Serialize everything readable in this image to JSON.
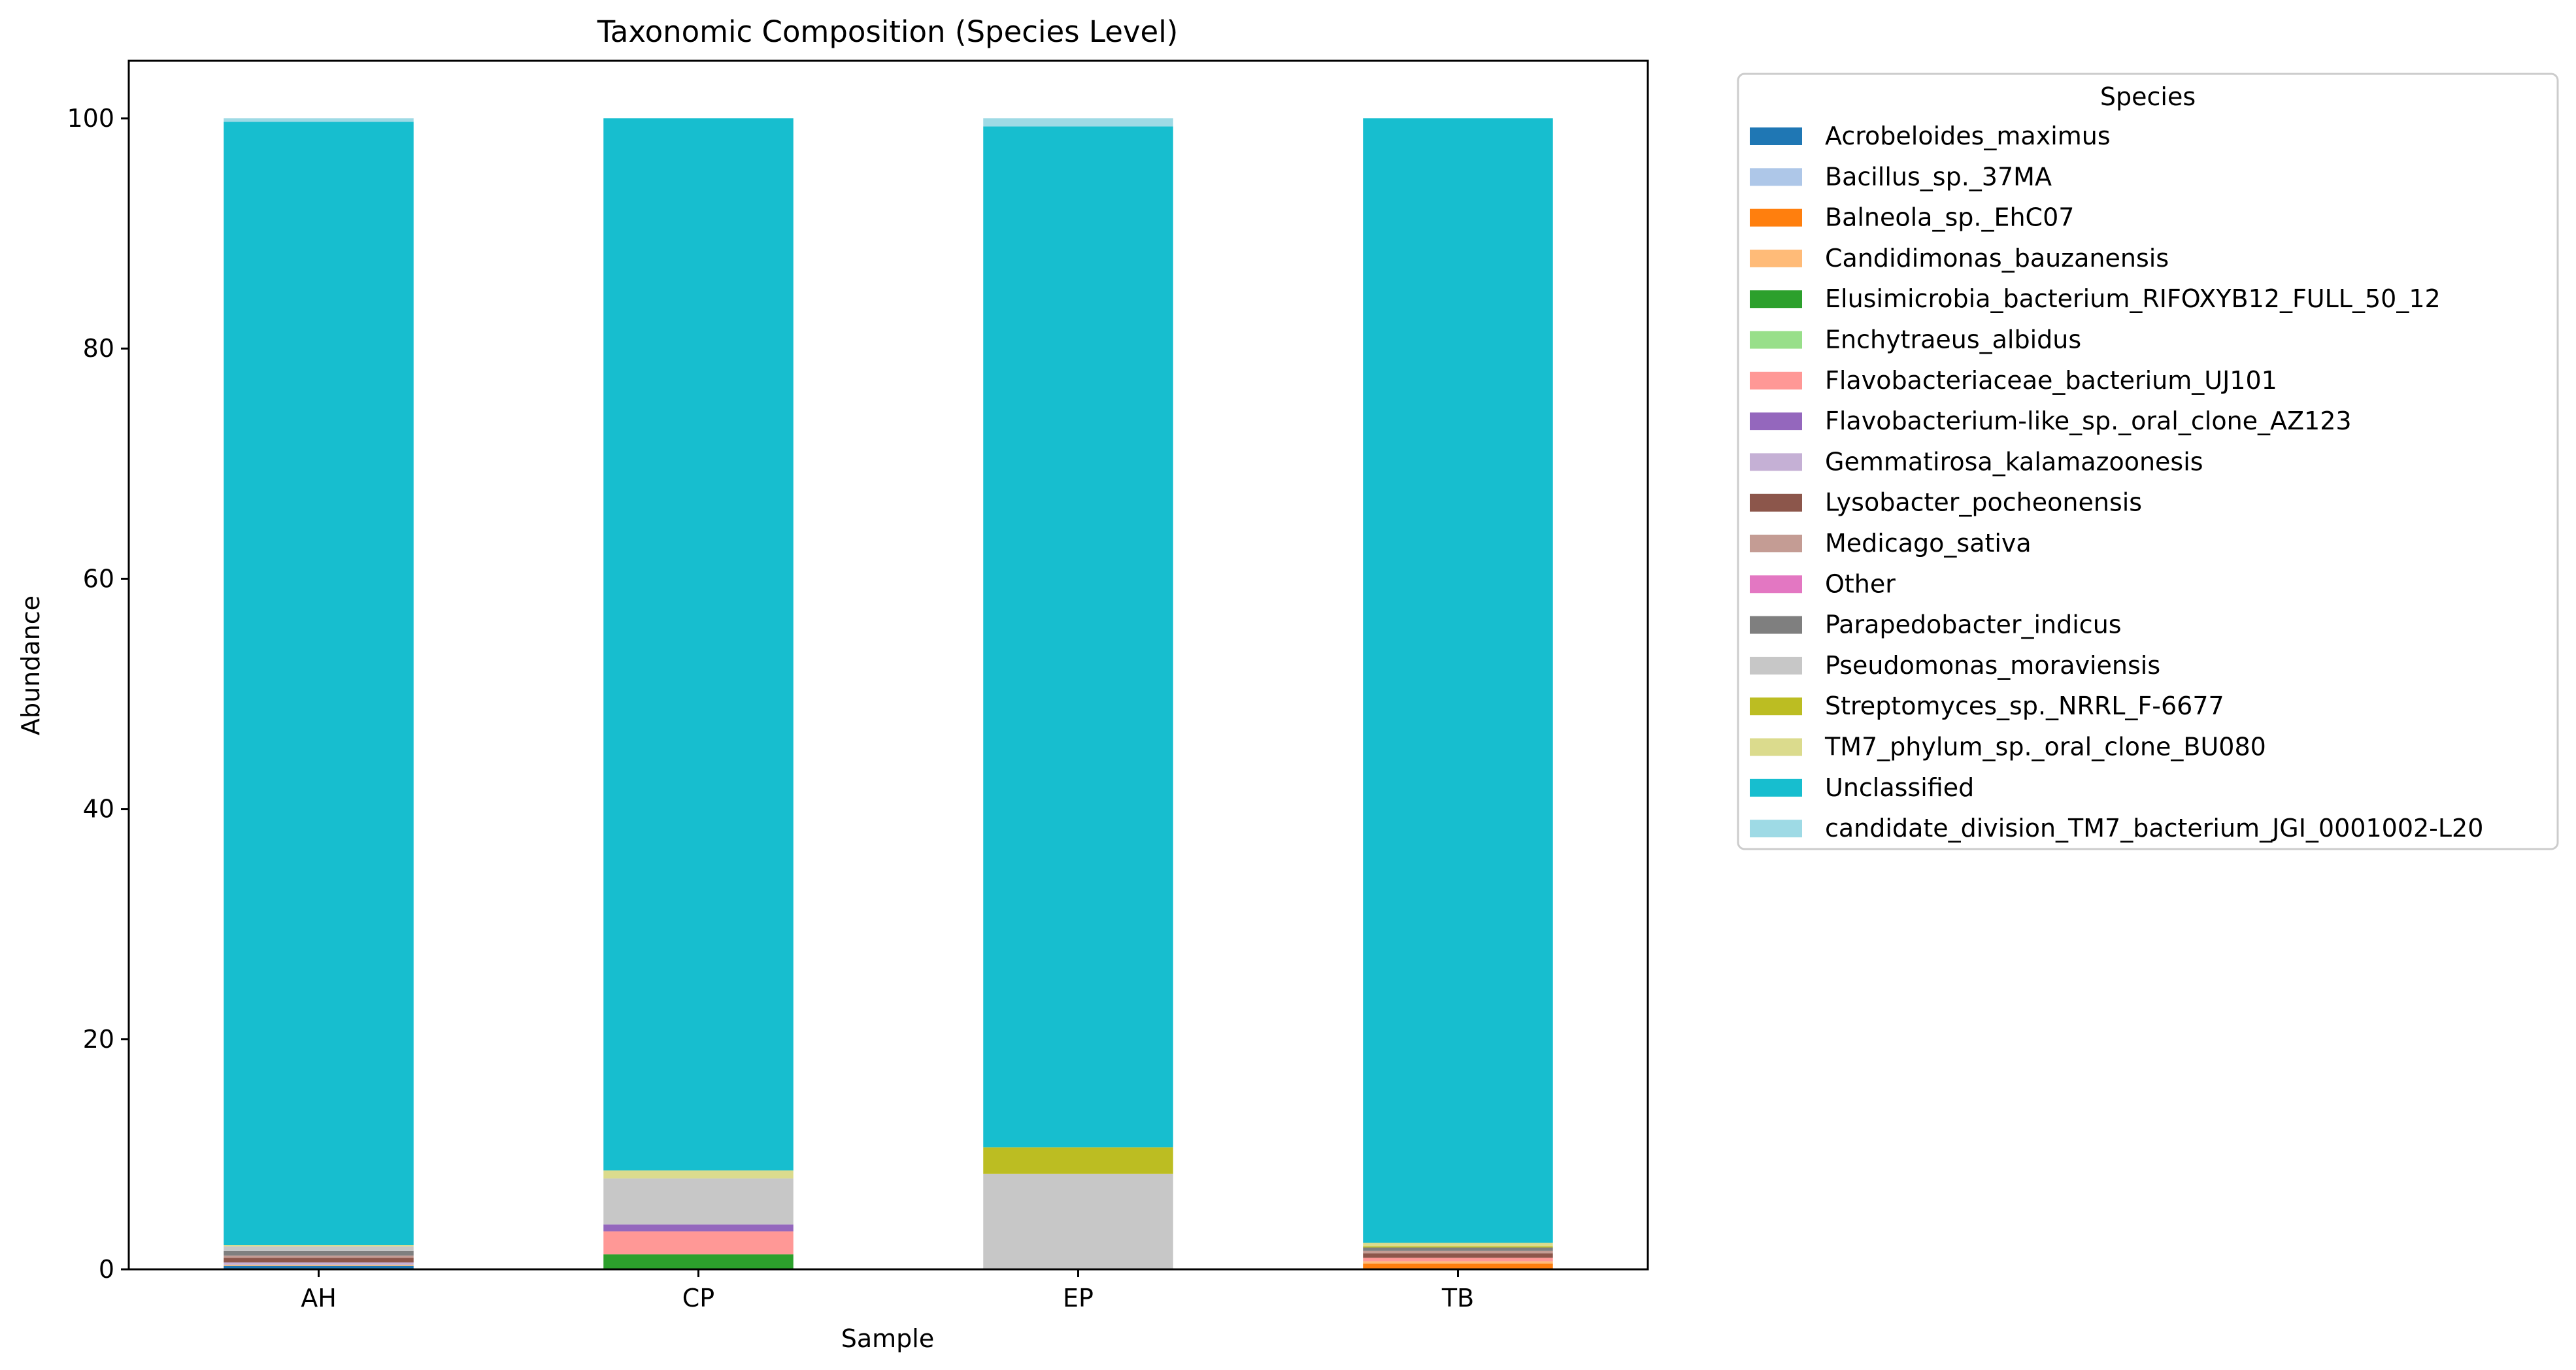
{
  "chart_data": {
    "type": "bar",
    "stacked": true,
    "title": "Taxonomic Composition (Species Level)",
    "xlabel": "Sample",
    "ylabel": "Abundance",
    "categories": [
      "AH",
      "CP",
      "EP",
      "TB"
    ],
    "ylim": [
      0,
      105
    ],
    "yticks": [
      0,
      20,
      40,
      60,
      80,
      100
    ],
    "grid": false,
    "legend": {
      "title": "Species",
      "placement": "outside-right-top"
    },
    "series": [
      {
        "name": "Acrobeloides_maximus",
        "color": "#1f77b4",
        "values": [
          0.3,
          0.0,
          0.0,
          0.0
        ]
      },
      {
        "name": "Bacillus_sp._37MA",
        "color": "#aec7e8",
        "values": [
          0.0,
          0.0,
          0.0,
          0.0
        ]
      },
      {
        "name": "Balneola_sp._EhC07",
        "color": "#ff7f0e",
        "values": [
          0.0,
          0.0,
          0.0,
          0.5
        ]
      },
      {
        "name": "Candidimonas_bauzanensis",
        "color": "#ffbb78",
        "values": [
          0.1,
          0.0,
          0.0,
          0.2
        ]
      },
      {
        "name": "Elusimicrobia_bacterium_RIFOXYB12_FULL_50_12",
        "color": "#2ca02c",
        "values": [
          0.0,
          1.3,
          0.0,
          0.0
        ]
      },
      {
        "name": "Enchytraeus_albidus",
        "color": "#98df8a",
        "values": [
          0.0,
          0.0,
          0.0,
          0.0
        ]
      },
      {
        "name": "Flavobacteriaceae_bacterium_UJ101",
        "color": "#ff9896",
        "values": [
          0.0,
          2.0,
          0.0,
          0.3
        ]
      },
      {
        "name": "Flavobacterium-like_sp._oral_clone_AZ123",
        "color": "#9467bd",
        "values": [
          0.0,
          0.6,
          0.0,
          0.0
        ]
      },
      {
        "name": "Gemmatirosa_kalamazoonesis",
        "color": "#c5b0d5",
        "values": [
          0.2,
          0.0,
          0.0,
          0.0
        ]
      },
      {
        "name": "Lysobacter_pocheonensis",
        "color": "#8c564b",
        "values": [
          0.4,
          0.0,
          0.0,
          0.4
        ]
      },
      {
        "name": "Medicago_sativa",
        "color": "#c49c94",
        "values": [
          0.2,
          0.0,
          0.0,
          0.2
        ]
      },
      {
        "name": "Other",
        "color": "#e377c2",
        "values": [
          0.0,
          0.0,
          0.0,
          0.0
        ]
      },
      {
        "name": "Parapedobacter_indicus",
        "color": "#7f7f7f",
        "values": [
          0.4,
          0.0,
          0.0,
          0.3
        ]
      },
      {
        "name": "Pseudomonas_moraviensis",
        "color": "#c7c7c7",
        "values": [
          0.4,
          4.0,
          8.3,
          0.0
        ]
      },
      {
        "name": "Streptomyces_sp._NRRL_F-6677",
        "color": "#bcbd22",
        "values": [
          0.0,
          0.0,
          2.3,
          0.1
        ]
      },
      {
        "name": "TM7_phylum_sp._oral_clone_BU080",
        "color": "#dbdb8d",
        "values": [
          0.1,
          0.7,
          0.0,
          0.3
        ]
      },
      {
        "name": "Unclassified",
        "color": "#17becf",
        "values": [
          97.6,
          91.4,
          88.7,
          97.7
        ]
      },
      {
        "name": "candidate_division_TM7_bacterium_JGI_0001002-L20",
        "color": "#9edae5",
        "values": [
          0.3,
          0.0,
          0.7,
          0.0
        ]
      }
    ]
  }
}
